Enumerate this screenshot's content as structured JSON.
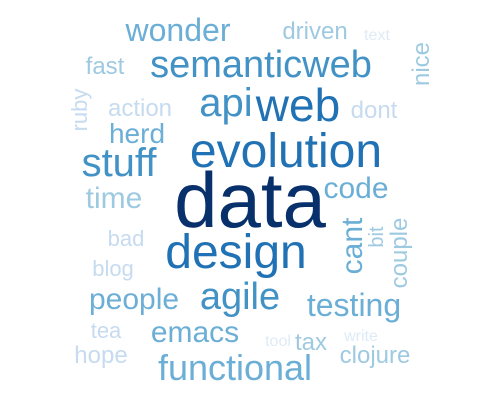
{
  "palette": {
    "darkest": "#08306b",
    "dark": "#2171b5",
    "medium": "#4292c6",
    "mid_light": "#6baed6",
    "light": "#9ecae1",
    "lighter": "#c6dbef",
    "lightest": "#deebf7"
  },
  "words": [
    {
      "key": "data",
      "text": "data",
      "color": "#08306b"
    },
    {
      "key": "design",
      "text": "design",
      "color": "#2171b5"
    },
    {
      "key": "evolution",
      "text": "evolution",
      "color": "#2171b5"
    },
    {
      "key": "web",
      "text": "web",
      "color": "#2171b5"
    },
    {
      "key": "api",
      "text": "api",
      "color": "#4292c6"
    },
    {
      "key": "semanticweb",
      "text": "semanticweb",
      "color": "#4292c6"
    },
    {
      "key": "stuff",
      "text": "stuff",
      "color": "#4292c6"
    },
    {
      "key": "agile",
      "text": "agile",
      "color": "#4292c6"
    },
    {
      "key": "functional",
      "text": "functional",
      "color": "#6baed6"
    },
    {
      "key": "wonder",
      "text": "wonder",
      "color": "#6baed6"
    },
    {
      "key": "testing",
      "text": "testing",
      "color": "#6baed6"
    },
    {
      "key": "people",
      "text": "people",
      "color": "#6baed6"
    },
    {
      "key": "emacs",
      "text": "emacs",
      "color": "#6baed6"
    },
    {
      "key": "code",
      "text": "code",
      "color": "#6baed6"
    },
    {
      "key": "herd",
      "text": "herd",
      "color": "#6baed6"
    },
    {
      "key": "time",
      "text": "time",
      "color": "#9ecae1"
    },
    {
      "key": "cant",
      "text": "cant",
      "color": "#6baed6"
    },
    {
      "key": "driven",
      "text": "driven",
      "color": "#9ecae1"
    },
    {
      "key": "action",
      "text": "action",
      "color": "#c6dbef"
    },
    {
      "key": "dont",
      "text": "dont",
      "color": "#c6dbef"
    },
    {
      "key": "fast",
      "text": "fast",
      "color": "#9ecae1"
    },
    {
      "key": "couple",
      "text": "couple",
      "color": "#9ecae1"
    },
    {
      "key": "clojure",
      "text": "clojure",
      "color": "#9ecae1"
    },
    {
      "key": "hope",
      "text": "hope",
      "color": "#c6dbef"
    },
    {
      "key": "tax",
      "text": "tax",
      "color": "#9ecae1"
    },
    {
      "key": "blog",
      "text": "blog",
      "color": "#c6dbef"
    },
    {
      "key": "bad",
      "text": "bad",
      "color": "#c6dbef"
    },
    {
      "key": "tea",
      "text": "tea",
      "color": "#c6dbef"
    },
    {
      "key": "nice",
      "text": "nice",
      "color": "#9ecae1"
    },
    {
      "key": "ruby",
      "text": "ruby",
      "color": "#c6dbef"
    },
    {
      "key": "bit",
      "text": "bit",
      "color": "#9ecae1"
    },
    {
      "key": "text",
      "text": "text",
      "color": "#deebf7"
    },
    {
      "key": "tool",
      "text": "tool",
      "color": "#deebf7"
    },
    {
      "key": "write",
      "text": "write",
      "color": "#deebf7"
    }
  ]
}
